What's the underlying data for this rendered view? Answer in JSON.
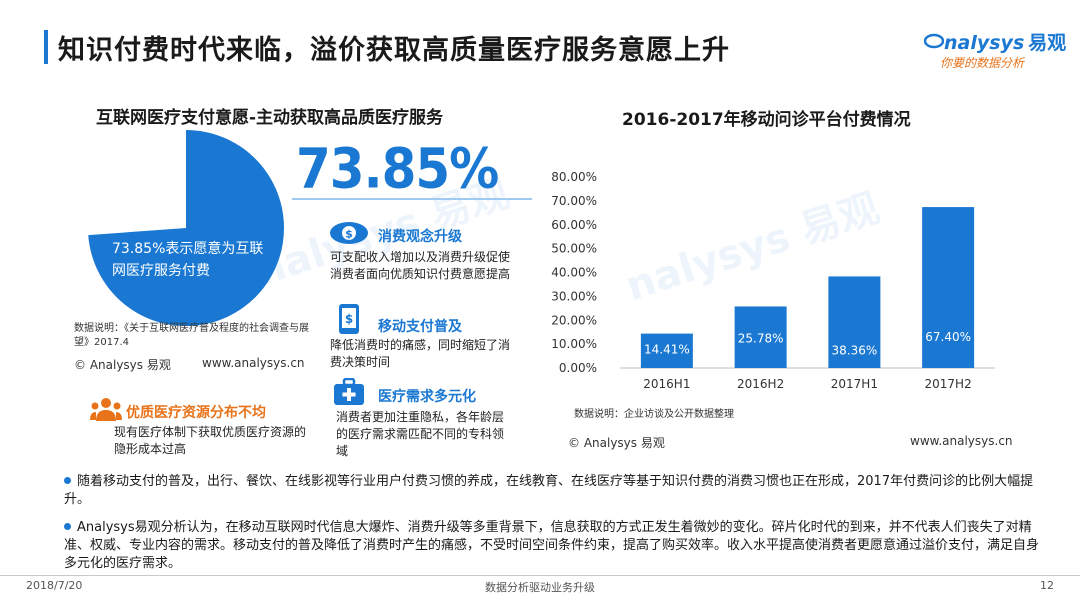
{
  "page": {
    "title": "知识付费时代来临，溢价获取高质量医疗服务意愿上升"
  },
  "logo": {
    "brand": "nalysys",
    "brand_cn": "易观",
    "slogan": "你要的数据分析"
  },
  "watermark": {
    "text": "nalysys 易观"
  },
  "left_panel": {
    "title": "互联网医疗支付意愿-主动获取高品质医疗服务",
    "pie_fraction": 0.7385,
    "pie_color": "#1a78d2",
    "pie_label": "73.85%表示愿意为互联网医疗服务付费",
    "big_percent": "73.85%",
    "features": [
      {
        "title": "消费观念升级",
        "desc": "可支配收入增加以及消费升级促使消费者面向优质知识付费意愿提高"
      },
      {
        "title": "移动支付普及",
        "desc": "降低消费时的痛感，同时缩短了消费决策时间"
      },
      {
        "title": "医疗需求多元化",
        "desc": "消费者更加注重隐私，各年龄层的医疗需求需匹配不同的专科领域"
      }
    ],
    "source_note": "数据说明：《关于互联网医疗普及程度的社会调查与展望》2017.4",
    "copyright": "© Analysys 易观",
    "website": "www.analysys.cn",
    "orange_feature": {
      "title": "优质医疗资源分布不均",
      "desc": "现有医疗体制下获取优质医疗资源的隐形成本过高",
      "color": "#e8731a"
    }
  },
  "right_panel": {
    "title": "2016-2017年移动问诊平台付费情况",
    "source_note": "数据说明：企业访谈及公开数据整理",
    "copyright": "© Analysys 易观",
    "website": "www.analysys.cn"
  },
  "chart_data": {
    "type": "bar",
    "title": "2016-2017年移动问诊平台付费情况",
    "categories": [
      "2016H1",
      "2016H2",
      "2017H1",
      "2017H2"
    ],
    "values": [
      14.41,
      25.78,
      38.36,
      67.4
    ],
    "value_labels": [
      "14.41%",
      "25.78%",
      "38.36%",
      "67.40%"
    ],
    "yticks": [
      "0.00%",
      "10.00%",
      "20.00%",
      "30.00%",
      "40.00%",
      "50.00%",
      "60.00%",
      "70.00%",
      "80.00%"
    ],
    "ylim": [
      0,
      80
    ],
    "xlabel": "",
    "ylabel": "",
    "grid": false,
    "bar_color": "#1a78d2"
  },
  "bullets": [
    "随着移动支付的普及，出行、餐饮、在线影视等行业用户付费习惯的养成，在线教育、在线医疗等基于知识付费的消费习惯也正在形成，2017年付费问诊的比例大幅提升。",
    "Analysys易观分析认为，在移动互联网时代信息大爆炸、消费升级等多重背景下，信息获取的方式正发生着微妙的变化。碎片化时代的到来，并不代表人们丧失了对精准、权威、专业内容的需求。移动支付的普及降低了消费时产生的痛感，不受时间空间条件约束，提高了购买效率。收入水平提高使消费者更愿意通过溢价支付，满足自身多元化的医疗需求。"
  ],
  "footer": {
    "date": "2018/7/20",
    "center": "数据分析驱动业务升级",
    "page_number": "12"
  }
}
